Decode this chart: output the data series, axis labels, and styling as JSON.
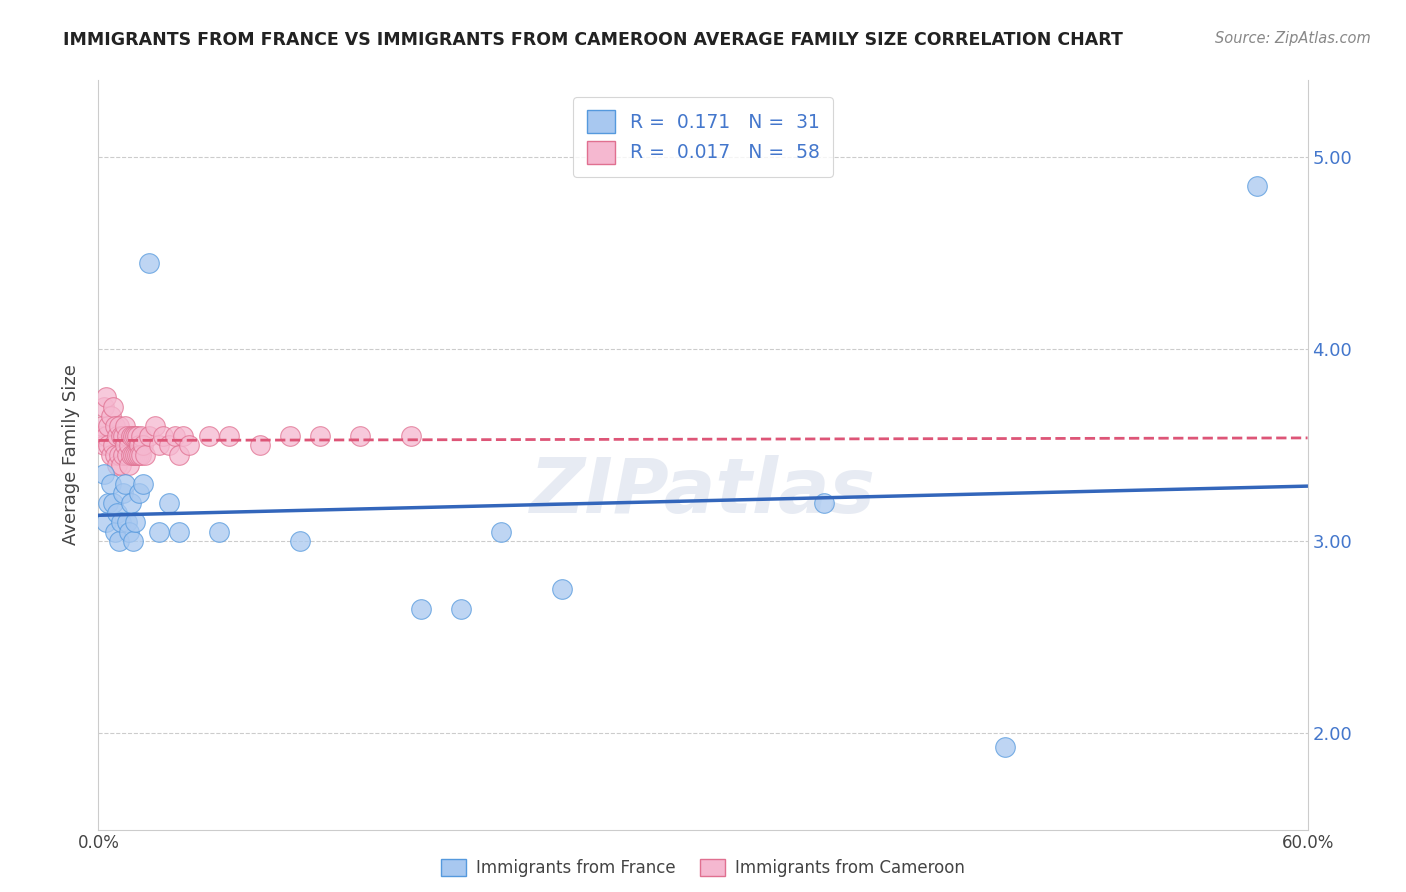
{
  "title": "IMMIGRANTS FROM FRANCE VS IMMIGRANTS FROM CAMEROON AVERAGE FAMILY SIZE CORRELATION CHART",
  "source": "Source: ZipAtlas.com",
  "ylabel": "Average Family Size",
  "xlim": [
    0.0,
    0.6
  ],
  "ylim": [
    1.5,
    5.4
  ],
  "yticks": [
    2.0,
    3.0,
    4.0,
    5.0
  ],
  "xticks": [
    0.0,
    0.1,
    0.2,
    0.3,
    0.4,
    0.5,
    0.6
  ],
  "xtick_labels": [
    "0.0%",
    "",
    "",
    "",
    "",
    "",
    "60.0%"
  ],
  "france_color": "#a8c8f0",
  "france_edge_color": "#5599dd",
  "cameroon_color": "#f5b8d0",
  "cameroon_edge_color": "#e07090",
  "france_line_color": "#3366bb",
  "cameroon_line_color": "#dd5577",
  "legend_text_color": "#4477cc",
  "R_france": 0.171,
  "N_france": 31,
  "R_cameroon": 0.017,
  "N_cameroon": 58,
  "france_x": [
    0.003,
    0.004,
    0.005,
    0.006,
    0.007,
    0.008,
    0.009,
    0.01,
    0.011,
    0.012,
    0.013,
    0.014,
    0.015,
    0.016,
    0.017,
    0.018,
    0.02,
    0.022,
    0.025,
    0.03,
    0.035,
    0.04,
    0.06,
    0.1,
    0.16,
    0.18,
    0.2,
    0.23,
    0.36,
    0.45,
    0.575
  ],
  "france_y": [
    3.35,
    3.1,
    3.2,
    3.3,
    3.2,
    3.05,
    3.15,
    3.0,
    3.1,
    3.25,
    3.3,
    3.1,
    3.05,
    3.2,
    3.0,
    3.1,
    3.25,
    3.3,
    4.45,
    3.05,
    3.2,
    3.05,
    3.05,
    3.0,
    2.65,
    2.65,
    3.05,
    2.75,
    3.2,
    1.93,
    4.85
  ],
  "cameroon_x": [
    0.001,
    0.002,
    0.003,
    0.003,
    0.004,
    0.004,
    0.005,
    0.005,
    0.006,
    0.006,
    0.007,
    0.007,
    0.008,
    0.008,
    0.009,
    0.009,
    0.01,
    0.01,
    0.011,
    0.011,
    0.012,
    0.012,
    0.013,
    0.013,
    0.014,
    0.014,
    0.015,
    0.015,
    0.016,
    0.016,
    0.017,
    0.017,
    0.018,
    0.018,
    0.019,
    0.019,
    0.02,
    0.02,
    0.021,
    0.021,
    0.022,
    0.023,
    0.025,
    0.028,
    0.03,
    0.032,
    0.035,
    0.038,
    0.04,
    0.042,
    0.045,
    0.055,
    0.065,
    0.08,
    0.095,
    0.11,
    0.13,
    0.155
  ],
  "cameroon_y": [
    3.55,
    3.6,
    3.7,
    3.5,
    3.75,
    3.55,
    3.6,
    3.5,
    3.65,
    3.45,
    3.7,
    3.5,
    3.6,
    3.45,
    3.55,
    3.4,
    3.6,
    3.45,
    3.55,
    3.4,
    3.55,
    3.45,
    3.6,
    3.5,
    3.55,
    3.45,
    3.5,
    3.4,
    3.55,
    3.45,
    3.55,
    3.45,
    3.55,
    3.45,
    3.55,
    3.45,
    3.5,
    3.45,
    3.55,
    3.45,
    3.5,
    3.45,
    3.55,
    3.6,
    3.5,
    3.55,
    3.5,
    3.55,
    3.45,
    3.55,
    3.5,
    3.55,
    3.55,
    3.5,
    3.55,
    3.55,
    3.55,
    3.55
  ],
  "watermark": "ZIPatlas",
  "legend_label1": "R =  0.171   N =  31",
  "legend_label2": "R =  0.017   N =  58"
}
